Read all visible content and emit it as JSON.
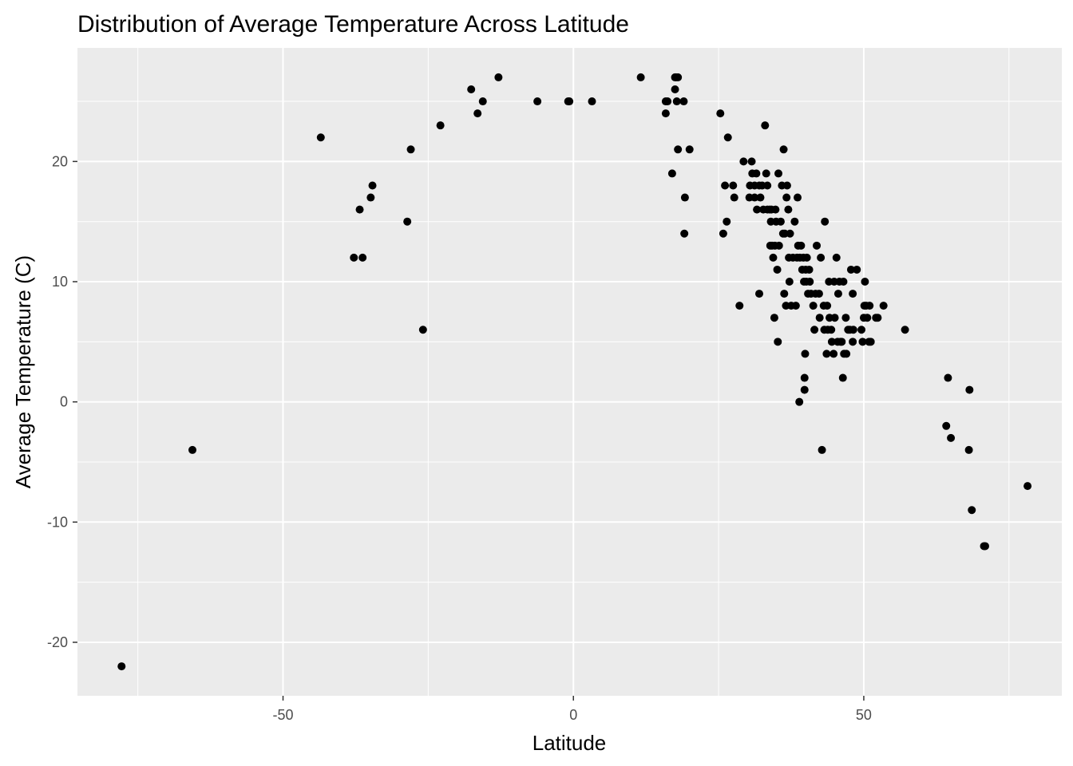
{
  "chart_data": {
    "type": "scatter",
    "title": "Distribution of Average Temperature Across Latitude",
    "xlabel": "Latitude",
    "ylabel": "Average Temperature (C)",
    "xlim": [
      -85.4,
      84.1
    ],
    "ylim": [
      -24.45,
      29.45
    ],
    "x_ticks": [
      -50,
      0,
      50
    ],
    "x_tick_labels": [
      "-50",
      "0",
      "50"
    ],
    "y_ticks": [
      -20,
      -10,
      0,
      10,
      20
    ],
    "y_tick_labels": [
      "-20",
      "-10",
      "0",
      "10",
      "20"
    ],
    "grid": true,
    "legend": "none",
    "colors": {
      "panel": "#ebebeb",
      "grid": "#ffffff",
      "point": "#000000"
    },
    "points": [
      [
        -77.8,
        -22
      ],
      [
        -65.6,
        -4
      ],
      [
        -43.5,
        22
      ],
      [
        -37.8,
        12
      ],
      [
        -36.8,
        16
      ],
      [
        -36.3,
        12
      ],
      [
        -34.9,
        17
      ],
      [
        -34.6,
        18
      ],
      [
        -28.6,
        15
      ],
      [
        -28.0,
        21
      ],
      [
        -25.9,
        6
      ],
      [
        -22.9,
        23
      ],
      [
        -17.6,
        26
      ],
      [
        -16.5,
        24
      ],
      [
        -15.6,
        25
      ],
      [
        -12.9,
        27
      ],
      [
        -6.2,
        25
      ],
      [
        -0.9,
        25
      ],
      [
        -0.7,
        25
      ],
      [
        3.2,
        25
      ],
      [
        11.6,
        27
      ],
      [
        15.9,
        24
      ],
      [
        15.9,
        25
      ],
      [
        16.2,
        25
      ],
      [
        17.0,
        19
      ],
      [
        17.5,
        26
      ],
      [
        17.5,
        27
      ],
      [
        17.7,
        27
      ],
      [
        17.8,
        25
      ],
      [
        18.0,
        27
      ],
      [
        18.0,
        21
      ],
      [
        19.0,
        25
      ],
      [
        19.1,
        14
      ],
      [
        19.2,
        17
      ],
      [
        20.0,
        21
      ],
      [
        25.3,
        24
      ],
      [
        25.8,
        14
      ],
      [
        26.1,
        18
      ],
      [
        26.4,
        15
      ],
      [
        26.6,
        22
      ],
      [
        27.5,
        18
      ],
      [
        27.7,
        17
      ],
      [
        28.6,
        8
      ],
      [
        29.3,
        20
      ],
      [
        30.3,
        17
      ],
      [
        30.4,
        18
      ],
      [
        30.7,
        20
      ],
      [
        30.8,
        19
      ],
      [
        31.2,
        17
      ],
      [
        31.2,
        18
      ],
      [
        31.5,
        19
      ],
      [
        31.6,
        16
      ],
      [
        32.0,
        9
      ],
      [
        32.0,
        18
      ],
      [
        32.2,
        17
      ],
      [
        32.5,
        18
      ],
      [
        32.7,
        16
      ],
      [
        33.0,
        23
      ],
      [
        33.2,
        19
      ],
      [
        33.4,
        18
      ],
      [
        33.4,
        16
      ],
      [
        33.8,
        16
      ],
      [
        33.9,
        13
      ],
      [
        34.0,
        15
      ],
      [
        34.1,
        16
      ],
      [
        34.2,
        13
      ],
      [
        34.4,
        12
      ],
      [
        34.6,
        7
      ],
      [
        34.7,
        13
      ],
      [
        34.8,
        16
      ],
      [
        34.9,
        15
      ],
      [
        35.1,
        11
      ],
      [
        35.2,
        5
      ],
      [
        35.3,
        19
      ],
      [
        35.4,
        13
      ],
      [
        35.7,
        15
      ],
      [
        35.9,
        18
      ],
      [
        36.1,
        14
      ],
      [
        36.2,
        21
      ],
      [
        36.3,
        9
      ],
      [
        36.4,
        14
      ],
      [
        36.6,
        8
      ],
      [
        36.7,
        17
      ],
      [
        36.8,
        18
      ],
      [
        37.0,
        16
      ],
      [
        37.1,
        12
      ],
      [
        37.2,
        10
      ],
      [
        37.3,
        14
      ],
      [
        37.5,
        8
      ],
      [
        37.8,
        12
      ],
      [
        38.1,
        15
      ],
      [
        38.3,
        8
      ],
      [
        38.5,
        12
      ],
      [
        38.6,
        17
      ],
      [
        38.7,
        13
      ],
      [
        38.9,
        0
      ],
      [
        39.0,
        12
      ],
      [
        39.2,
        13
      ],
      [
        39.4,
        11
      ],
      [
        39.6,
        12
      ],
      [
        39.7,
        10
      ],
      [
        39.8,
        2
      ],
      [
        39.8,
        1
      ],
      [
        39.9,
        4
      ],
      [
        40.0,
        11
      ],
      [
        40.1,
        10
      ],
      [
        40.2,
        12
      ],
      [
        40.4,
        9
      ],
      [
        40.6,
        11
      ],
      [
        40.7,
        10
      ],
      [
        40.9,
        9
      ],
      [
        41.3,
        8
      ],
      [
        41.5,
        6
      ],
      [
        41.7,
        9
      ],
      [
        41.9,
        13
      ],
      [
        42.3,
        9
      ],
      [
        42.4,
        7
      ],
      [
        42.6,
        12
      ],
      [
        42.8,
        -4
      ],
      [
        43.1,
        8
      ],
      [
        43.2,
        6
      ],
      [
        43.3,
        15
      ],
      [
        43.6,
        4
      ],
      [
        43.7,
        8
      ],
      [
        43.8,
        6
      ],
      [
        44.0,
        10
      ],
      [
        44.1,
        7
      ],
      [
        44.4,
        6
      ],
      [
        44.5,
        5
      ],
      [
        44.8,
        4
      ],
      [
        44.9,
        10
      ],
      [
        45.0,
        7
      ],
      [
        45.3,
        12
      ],
      [
        45.5,
        5
      ],
      [
        45.6,
        9
      ],
      [
        45.8,
        10
      ],
      [
        46.0,
        5
      ],
      [
        46.2,
        5
      ],
      [
        46.4,
        2
      ],
      [
        46.5,
        10
      ],
      [
        46.6,
        4
      ],
      [
        46.9,
        7
      ],
      [
        47.0,
        4
      ],
      [
        47.3,
        6
      ],
      [
        47.6,
        6
      ],
      [
        47.8,
        11
      ],
      [
        48.1,
        9
      ],
      [
        48.1,
        5
      ],
      [
        48.2,
        6
      ],
      [
        48.8,
        11
      ],
      [
        49.6,
        6
      ],
      [
        49.8,
        5
      ],
      [
        50.0,
        7
      ],
      [
        50.1,
        8
      ],
      [
        50.2,
        10
      ],
      [
        50.4,
        8
      ],
      [
        50.6,
        7
      ],
      [
        50.9,
        5
      ],
      [
        51.0,
        8
      ],
      [
        51.2,
        5
      ],
      [
        52.1,
        7
      ],
      [
        52.4,
        7
      ],
      [
        53.4,
        8
      ],
      [
        57.1,
        6
      ],
      [
        64.2,
        -2
      ],
      [
        64.5,
        2
      ],
      [
        65.0,
        -3
      ],
      [
        68.1,
        -4
      ],
      [
        68.2,
        1
      ],
      [
        68.6,
        -9
      ],
      [
        70.7,
        -12
      ],
      [
        70.9,
        -12
      ],
      [
        78.2,
        -7
      ]
    ]
  }
}
